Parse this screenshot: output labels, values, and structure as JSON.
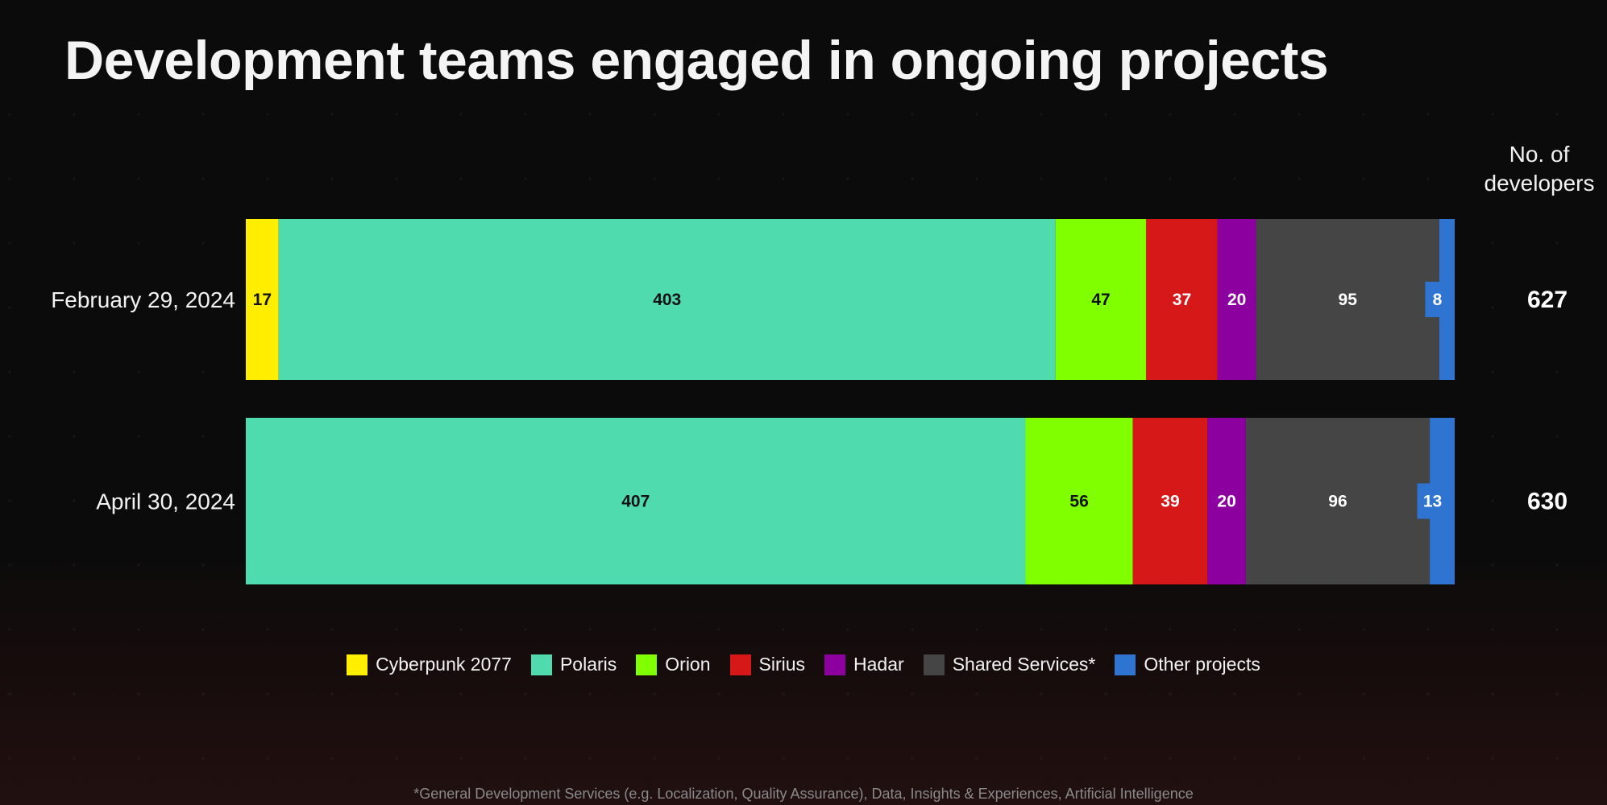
{
  "chart_data": {
    "type": "bar",
    "orientation": "horizontal",
    "stacked": true,
    "title": "Development teams engaged in ongoing projects",
    "categories": [
      "February 29, 2024",
      "April 30, 2024"
    ],
    "series": [
      {
        "name": "Cyberpunk 2077",
        "color": "#ffee00",
        "label_color": "#111111",
        "values": [
          17,
          0
        ]
      },
      {
        "name": "Polaris",
        "color": "#4fdbae",
        "label_color": "#111111",
        "values": [
          403,
          407
        ]
      },
      {
        "name": "Orion",
        "color": "#80ff00",
        "label_color": "#111111",
        "values": [
          47,
          56
        ]
      },
      {
        "name": "Sirius",
        "color": "#d71818",
        "label_color": "#ffffff",
        "values": [
          37,
          39
        ]
      },
      {
        "name": "Hadar",
        "color": "#8c00a0",
        "label_color": "#ffffff",
        "values": [
          20,
          20
        ]
      },
      {
        "name": "Shared Services*",
        "color": "#454545",
        "label_color": "#ffffff",
        "values": [
          95,
          96
        ]
      },
      {
        "name": "Other projects",
        "color": "#2f74d0",
        "label_color": "#ffffff",
        "values": [
          8,
          13
        ]
      }
    ],
    "totals": [
      627,
      630
    ],
    "totals_header": "No. of developers",
    "legend_position": "bottom",
    "grid": false
  },
  "footnote": "*General Development Services (e.g. Localization, Quality Assurance), Data, Insights & Experiences, Artificial Intelligence"
}
